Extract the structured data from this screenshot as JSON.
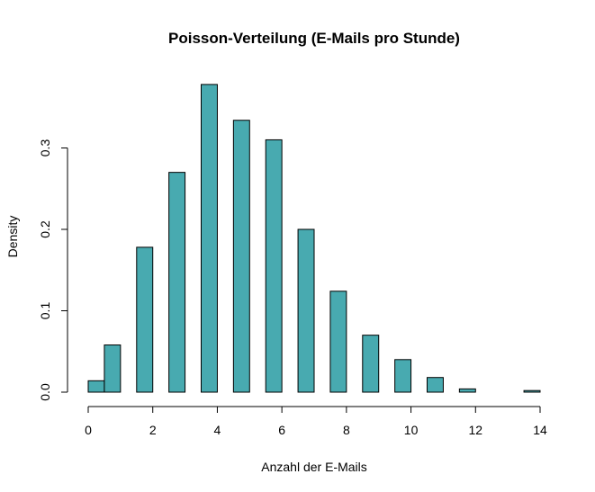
{
  "chart_data": {
    "type": "bar",
    "title": "Poisson-Verteilung (E-Mails pro Stunde)",
    "xlabel": "Anzahl der E-Mails",
    "ylabel": "Density",
    "bins": [
      {
        "x0": 0.0,
        "x1": 0.5,
        "density": 0.014
      },
      {
        "x0": 0.5,
        "x1": 1.0,
        "density": 0.058
      },
      {
        "x0": 1.5,
        "x1": 2.0,
        "density": 0.178
      },
      {
        "x0": 2.5,
        "x1": 3.0,
        "density": 0.27
      },
      {
        "x0": 3.5,
        "x1": 4.0,
        "density": 0.378
      },
      {
        "x0": 4.5,
        "x1": 5.0,
        "density": 0.334
      },
      {
        "x0": 5.5,
        "x1": 6.0,
        "density": 0.31
      },
      {
        "x0": 6.5,
        "x1": 7.0,
        "density": 0.2
      },
      {
        "x0": 7.5,
        "x1": 8.0,
        "density": 0.124
      },
      {
        "x0": 8.5,
        "x1": 9.0,
        "density": 0.07
      },
      {
        "x0": 9.5,
        "x1": 10.0,
        "density": 0.04
      },
      {
        "x0": 10.5,
        "x1": 11.0,
        "density": 0.018
      },
      {
        "x0": 11.5,
        "x1": 12.0,
        "density": 0.004
      },
      {
        "x0": 13.5,
        "x1": 14.0,
        "density": 0.002
      }
    ],
    "xlim": [
      0,
      14
    ],
    "ylim": [
      0,
      0.4
    ],
    "xticks": [
      0,
      2,
      4,
      6,
      8,
      10,
      12,
      14
    ],
    "xtick_labels": [
      "0",
      "2",
      "4",
      "6",
      "8",
      "10",
      "12",
      "14"
    ],
    "yticks": [
      0.0,
      0.1,
      0.2,
      0.3
    ],
    "ytick_labels": [
      "0.0",
      "0.1",
      "0.2",
      "0.3"
    ],
    "bar_color": "#48aab0",
    "edge_color": "#000000",
    "grid": false
  }
}
